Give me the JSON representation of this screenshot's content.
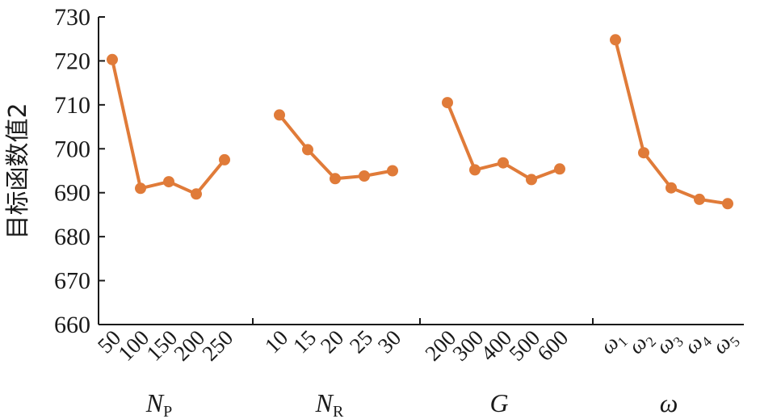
{
  "chart_data": {
    "type": "line",
    "ylabel": "目标函数值2",
    "ylim": [
      660,
      730
    ],
    "yticks": [
      "660",
      "670",
      "680",
      "690",
      "700",
      "710",
      "720",
      "730"
    ],
    "color": "#e07b39",
    "groups": [
      {
        "name_main": "N",
        "name_sub": "P",
        "categories": [
          "50",
          "100",
          "150",
          "200",
          "250"
        ],
        "values": [
          720.3,
          691.0,
          692.5,
          689.7,
          697.5
        ]
      },
      {
        "name_main": "N",
        "name_sub": "R",
        "categories": [
          "10",
          "15",
          "20",
          "25",
          "30"
        ],
        "values": [
          707.7,
          699.8,
          693.2,
          693.8,
          695.0
        ]
      },
      {
        "name_main": "G",
        "name_sub": "",
        "categories": [
          "200",
          "300",
          "400",
          "500",
          "600"
        ],
        "values": [
          710.5,
          695.2,
          696.8,
          693.0,
          695.4
        ]
      },
      {
        "name_main": "ω",
        "name_sub": "",
        "categories": [
          "ω1",
          "ω2",
          "ω3",
          "ω4",
          "ω5"
        ],
        "values": [
          724.8,
          699.1,
          691.1,
          688.5,
          687.5
        ]
      }
    ]
  }
}
